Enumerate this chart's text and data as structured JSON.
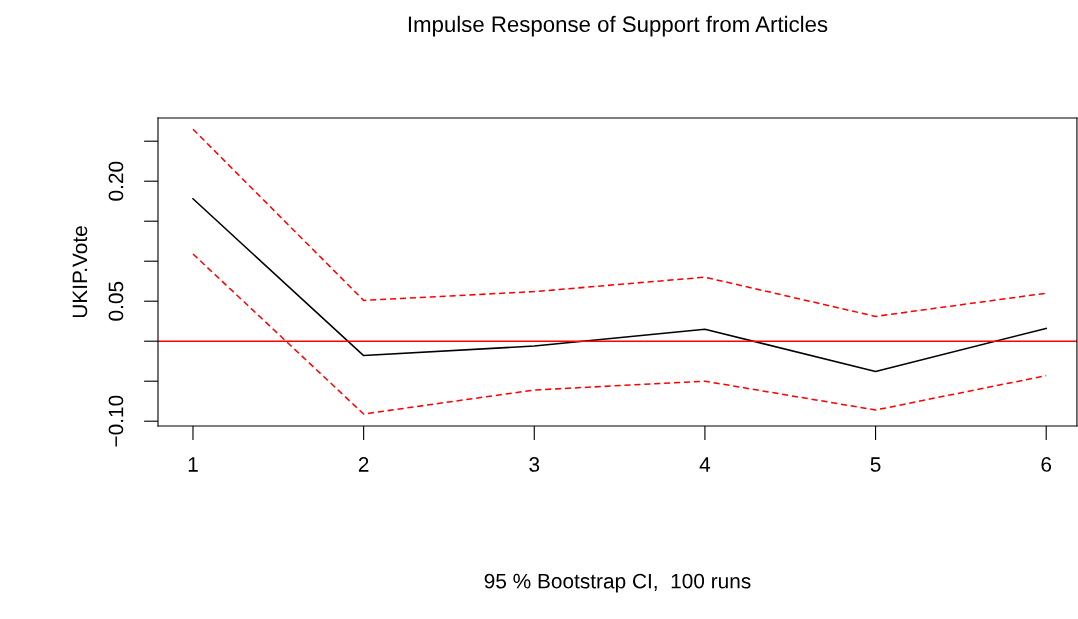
{
  "chart_data": {
    "type": "line",
    "title": "Impulse Response of Support from Articles",
    "xlabel": "95 % Bootstrap CI,  100 runs",
    "ylabel": "UKIP.Vote",
    "x": [
      1,
      2,
      3,
      4,
      5,
      6
    ],
    "series": [
      {
        "color": "#000000",
        "values": [
          0.178,
          -0.018,
          -0.006,
          0.015,
          -0.038,
          0.016
        ],
        "line_style": "solid"
      },
      {
        "color": "#ff0000",
        "values": [
          0.265,
          0.051,
          0.062,
          0.08,
          0.031,
          0.06
        ],
        "line_style": "dashed"
      },
      {
        "color": "#ff0000",
        "values": [
          0.109,
          -0.091,
          -0.061,
          -0.05,
          -0.086,
          -0.043
        ],
        "line_style": "dashed"
      }
    ],
    "xlim": [
      0.795,
      6.18
    ],
    "xticks": [
      1,
      2,
      3,
      4,
      5,
      6
    ],
    "ylim": [
      -0.106,
      0.279
    ],
    "yticks": [
      {
        "value": -0.1,
        "label": "−0.10"
      },
      {
        "value": -0.05,
        "label": null
      },
      {
        "value": 0.0,
        "label": null
      },
      {
        "value": 0.05,
        "label": "0.05"
      },
      {
        "value": 0.1,
        "label": null
      },
      {
        "value": 0.15,
        "label": null
      },
      {
        "value": 0.2,
        "label": "0.20"
      },
      {
        "value": 0.25,
        "label": null
      }
    ],
    "ref_lines": [
      {
        "axis": "y",
        "value": 0,
        "color": "#ff0000",
        "line_style": "solid"
      }
    ],
    "grid": false,
    "legend": false
  }
}
